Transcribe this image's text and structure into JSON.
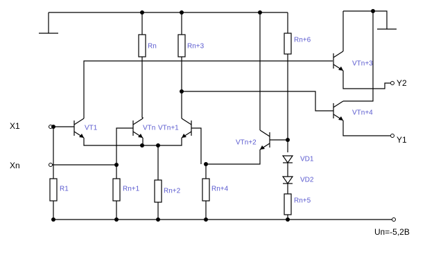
{
  "inputs": [
    "X1",
    "Xn"
  ],
  "outputs": [
    "Y2",
    "Y1"
  ],
  "supply": "Uп=-5,2В",
  "resistors": [
    "Rn",
    "Rn+3",
    "Rn+6",
    "R1",
    "Rn+1",
    "Rn+2",
    "Rn+4",
    "Rn+5"
  ],
  "transistors": [
    "VT1",
    "VTn",
    "VTn+1",
    "VTn+2",
    "VTn+3",
    "VTn+4"
  ],
  "diodes": [
    "VD1",
    "VD2"
  ]
}
